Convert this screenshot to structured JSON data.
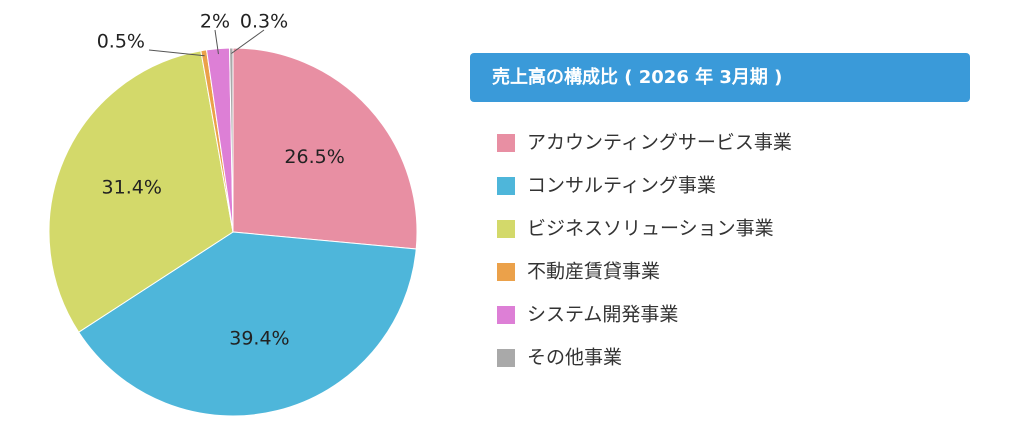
{
  "chart_data": {
    "type": "pie",
    "title": "売上高の構成比 ( 2026 年 3月期 )",
    "categories": [
      "アカウンティングサービス事業",
      "コンサルティング事業",
      "ビジネスソリューション事業",
      "不動産賃貸事業",
      "システム開発事業",
      "その他事業"
    ],
    "values": [
      26.5,
      39.4,
      31.4,
      0.5,
      2,
      0.3
    ],
    "value_labels": [
      "26.5%",
      "39.4%",
      "31.4%",
      "0.5%",
      "2%",
      "0.3%"
    ],
    "colors": [
      "#e88fa3",
      "#4eb6da",
      "#d3d96a",
      "#eba14a",
      "#dd7fd6",
      "#a9a9a9"
    ],
    "legend": "right"
  }
}
